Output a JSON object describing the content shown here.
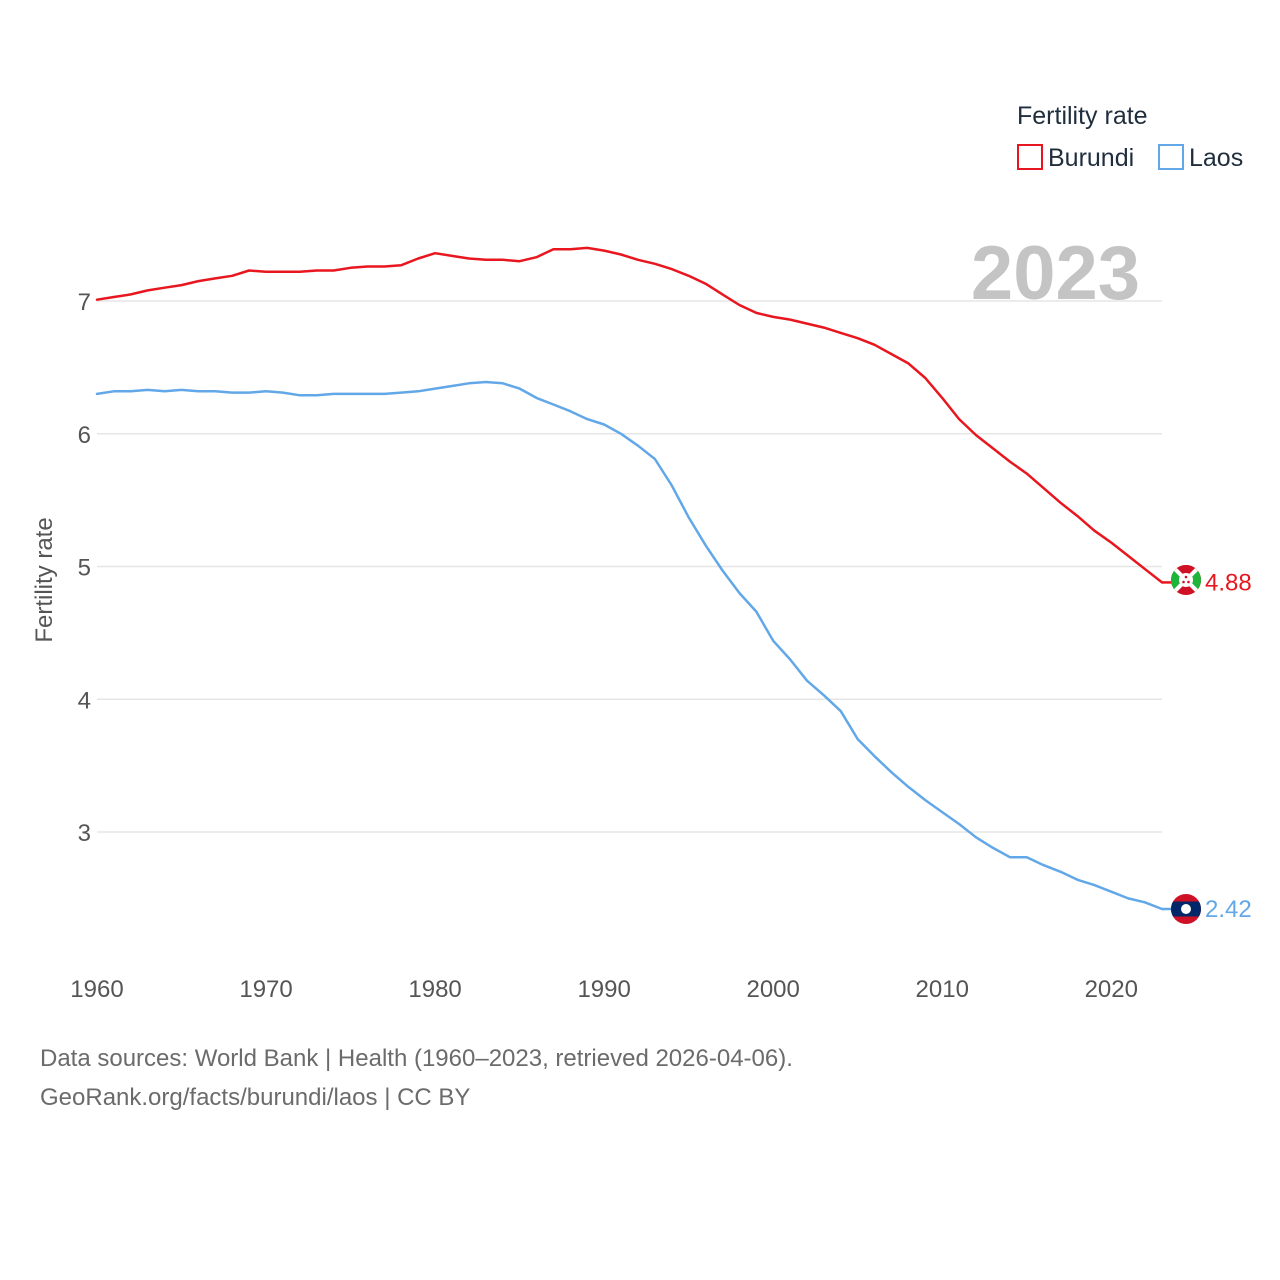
{
  "chart_data": {
    "type": "line",
    "ylabel": "Fertility rate",
    "xlabel": "",
    "xlim": [
      1960,
      2023
    ],
    "ylim": [
      2.2,
      7.7
    ],
    "x_ticks": [
      1960,
      1970,
      1980,
      1990,
      2000,
      2010,
      2020
    ],
    "y_ticks": [
      3,
      4,
      5,
      6,
      7
    ],
    "year_stamp": "2023",
    "legend": {
      "title": "Fertility rate",
      "position": "top-right",
      "entries": [
        "Burundi",
        "Laos"
      ]
    },
    "x": [
      1960,
      1961,
      1962,
      1963,
      1964,
      1965,
      1966,
      1967,
      1968,
      1969,
      1970,
      1971,
      1972,
      1973,
      1974,
      1975,
      1976,
      1977,
      1978,
      1979,
      1980,
      1981,
      1982,
      1983,
      1984,
      1985,
      1986,
      1987,
      1988,
      1989,
      1990,
      1991,
      1992,
      1993,
      1994,
      1995,
      1996,
      1997,
      1998,
      1999,
      2000,
      2001,
      2002,
      2003,
      2004,
      2005,
      2006,
      2007,
      2008,
      2009,
      2010,
      2011,
      2012,
      2013,
      2014,
      2015,
      2016,
      2017,
      2018,
      2019,
      2020,
      2021,
      2022,
      2023
    ],
    "series": [
      {
        "name": "Burundi",
        "color": "#e8171f",
        "end_label": "4.88",
        "values": [
          7.01,
          7.03,
          7.05,
          7.08,
          7.1,
          7.12,
          7.15,
          7.17,
          7.19,
          7.23,
          7.22,
          7.22,
          7.22,
          7.23,
          7.23,
          7.25,
          7.26,
          7.26,
          7.27,
          7.32,
          7.36,
          7.34,
          7.32,
          7.31,
          7.31,
          7.3,
          7.33,
          7.39,
          7.39,
          7.4,
          7.38,
          7.35,
          7.31,
          7.28,
          7.24,
          7.19,
          7.13,
          7.05,
          6.97,
          6.91,
          6.88,
          6.86,
          6.83,
          6.8,
          6.76,
          6.72,
          6.67,
          6.6,
          6.53,
          6.42,
          6.27,
          6.11,
          5.99,
          5.89,
          5.79,
          5.7,
          5.59,
          5.48,
          5.38,
          5.27,
          5.18,
          5.08,
          4.98,
          4.88
        ]
      },
      {
        "name": "Laos",
        "color": "#62a8e8",
        "end_label": "2.42",
        "values": [
          6.3,
          6.32,
          6.32,
          6.33,
          6.32,
          6.33,
          6.32,
          6.32,
          6.31,
          6.31,
          6.32,
          6.31,
          6.29,
          6.29,
          6.3,
          6.3,
          6.3,
          6.3,
          6.31,
          6.32,
          6.34,
          6.36,
          6.38,
          6.39,
          6.38,
          6.34,
          6.27,
          6.22,
          6.17,
          6.11,
          6.07,
          6.0,
          5.91,
          5.81,
          5.61,
          5.37,
          5.16,
          4.97,
          4.8,
          4.66,
          4.44,
          4.3,
          4.14,
          4.03,
          3.91,
          3.7,
          3.57,
          3.45,
          3.34,
          3.24,
          3.15,
          3.06,
          2.96,
          2.88,
          2.81,
          2.81,
          2.75,
          2.7,
          2.64,
          2.6,
          2.55,
          2.5,
          2.47,
          2.42
        ]
      }
    ]
  },
  "footer": {
    "source": "Data sources: World Bank | Health (1960–2023, retrieved 2026-04-06).",
    "site": "GeoRank.org/facts/burundi/laos | CC BY"
  }
}
